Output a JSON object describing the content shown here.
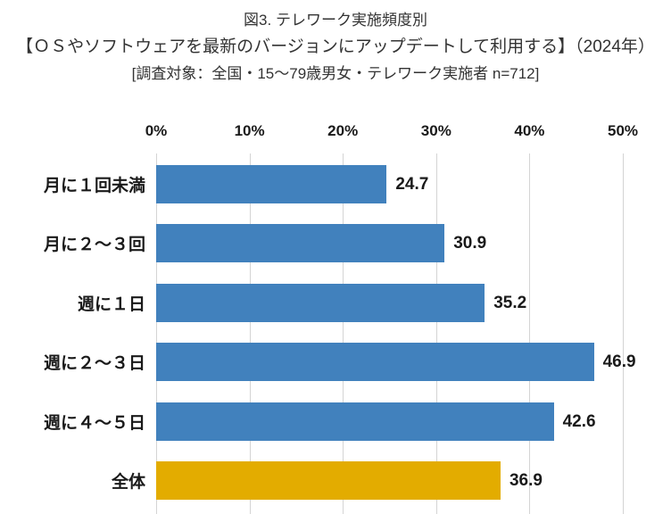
{
  "header": {
    "title": "図3. テレワーク実施頻度別",
    "subtitle": "【ＯＳやソフトウェアを最新のバージョンにアップデートして利用する】（2024年）",
    "note": "[調査対象：全国・15〜79歳男女・テレワーク実施者 n=712]"
  },
  "chart_data": {
    "type": "bar",
    "orientation": "horizontal",
    "title": "図3. テレワーク実施頻度別",
    "subtitle": "【ＯＳやソフトウェアを最新のバージョンにアップデートして利用する】（2024年）",
    "note": "[調査対象：全国・15〜79歳男女・テレワーク実施者 n=712]",
    "categories": [
      "月に１回未満",
      "月に２〜３回",
      "週に１日",
      "週に２〜３日",
      "週に４〜５日",
      "全体"
    ],
    "values": [
      24.7,
      30.9,
      35.2,
      46.9,
      42.6,
      36.9
    ],
    "value_labels": [
      "24.7",
      "30.9",
      "35.2",
      "46.9",
      "42.6",
      "36.9"
    ],
    "xlabel": "",
    "ylabel": "",
    "xlim": [
      0,
      50
    ],
    "x_ticks": [
      "0%",
      "10%",
      "20%",
      "30%",
      "40%",
      "50%"
    ],
    "x_tick_values": [
      0,
      10,
      20,
      30,
      40,
      50
    ],
    "grid": true,
    "legend": "none",
    "colors": {
      "bar": "#4181BD",
      "highlight_bar": "#E3AC00",
      "gridline": "#d4d4d4",
      "label_text": "#1a1a1a",
      "header_text": "#333333"
    },
    "highlight_category": "全体"
  }
}
